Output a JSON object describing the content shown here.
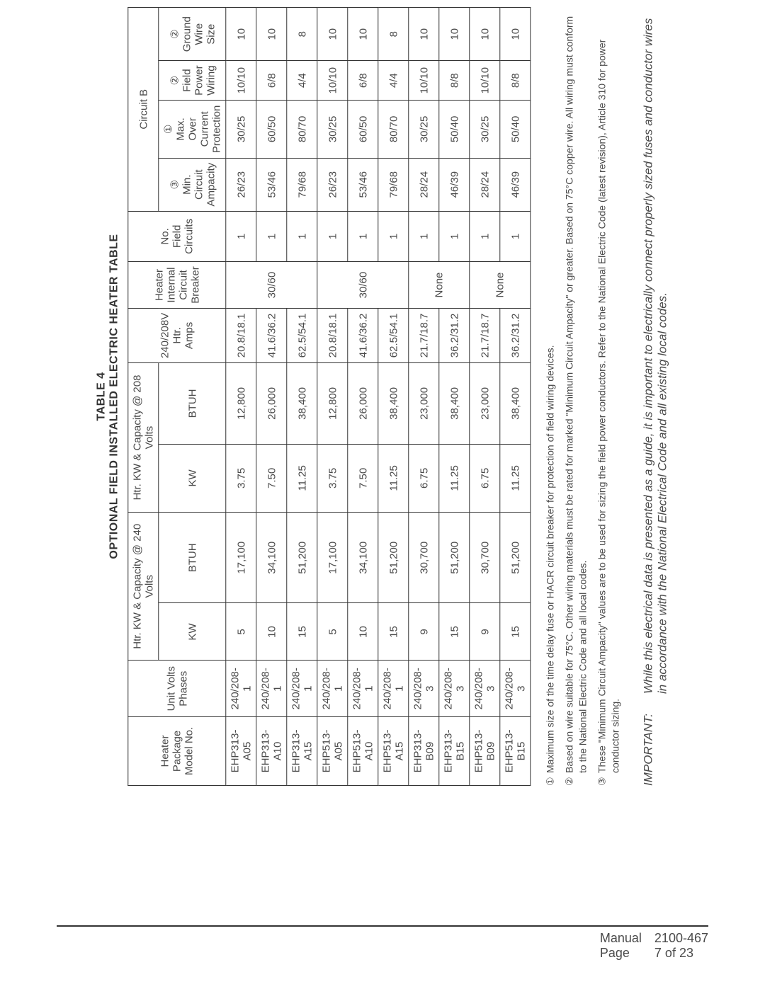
{
  "title": {
    "line1": "TABLE  4",
    "line2": "OPTIONAL FIELD INSTALLED ELECTRIC HEATER TABLE"
  },
  "symbols": {
    "c1": "①",
    "c2": "②",
    "c3": "③"
  },
  "headers": {
    "heater_pkg": "Heater Package Model No.",
    "unit_volts": "Unit Volts Phases",
    "cap240": "Htr. KW & Capacity @ 240 Volts",
    "cap208": "Htr. KW & Capacity @ 208 Volts",
    "kw": "KW",
    "btuh": "BTUH",
    "amps": "240/208V Htr. Amps",
    "hib": "Heater Internal Circuit Breaker",
    "nfc": "No. Field Circuits",
    "circuitB": "Circuit B",
    "min_amp": "Min. Circuit Ampacity",
    "max_over": "Max. Over Current Protection",
    "field_pw": "Field Power Wiring",
    "ground": "Ground Wire Size"
  },
  "rows": [
    {
      "model": "EHP313-A05",
      "uv": "240/208-1",
      "kw240": "5",
      "btuh240": "17,100",
      "kw208": "3.75",
      "btuh208": "12,800",
      "amps": "20.8/18.1",
      "hib": "30/60",
      "nfc": "1",
      "min": "26/23",
      "max": "30/25",
      "fpw": "10/10",
      "gnd": "10"
    },
    {
      "model": "EHP313-A10",
      "uv": "240/208-1",
      "kw240": "10",
      "btuh240": "34,100",
      "kw208": "7.50",
      "btuh208": "26,000",
      "amps": "41.6/36.2",
      "hib": "",
      "nfc": "1",
      "min": "53/46",
      "max": "60/50",
      "fpw": "6/8",
      "gnd": "10"
    },
    {
      "model": "EHP313-A15",
      "uv": "240/208-1",
      "kw240": "15",
      "btuh240": "51,200",
      "kw208": "11.25",
      "btuh208": "38,400",
      "amps": "62.5/54.1",
      "hib": "",
      "nfc": "1",
      "min": "79/68",
      "max": "80/70",
      "fpw": "4/4",
      "gnd": "8"
    },
    {
      "model": "EHP513-A05",
      "uv": "240/208-1",
      "kw240": "5",
      "btuh240": "17,100",
      "kw208": "3.75",
      "btuh208": "12,800",
      "amps": "20.8/18.1",
      "hib": "30/60",
      "nfc": "1",
      "min": "26/23",
      "max": "30/25",
      "fpw": "10/10",
      "gnd": "10"
    },
    {
      "model": "EHP513-A10",
      "uv": "240/208-1",
      "kw240": "10",
      "btuh240": "34,100",
      "kw208": "7.50",
      "btuh208": "26,000",
      "amps": "41.6/36.2",
      "hib": "",
      "nfc": "1",
      "min": "53/46",
      "max": "60/50",
      "fpw": "6/8",
      "gnd": "10"
    },
    {
      "model": "EHP513-A15",
      "uv": "240/208-1",
      "kw240": "15",
      "btuh240": "51,200",
      "kw208": "11.25",
      "btuh208": "38,400",
      "amps": "62.5/54.1",
      "hib": "",
      "nfc": "1",
      "min": "79/68",
      "max": "80/70",
      "fpw": "4/4",
      "gnd": "8"
    },
    {
      "model": "EHP313-B09",
      "uv": "240/208-3",
      "kw240": "9",
      "btuh240": "30,700",
      "kw208": "6.75",
      "btuh208": "23,000",
      "amps": "21.7/18.7",
      "hib": "None",
      "nfc": "1",
      "min": "28/24",
      "max": "30/25",
      "fpw": "10/10",
      "gnd": "10"
    },
    {
      "model": "EHP313-B15",
      "uv": "240/208-3",
      "kw240": "15",
      "btuh240": "51,200",
      "kw208": "11.25",
      "btuh208": "38,400",
      "amps": "36.2/31.2",
      "hib": "",
      "nfc": "1",
      "min": "46/39",
      "max": "50/40",
      "fpw": "8/8",
      "gnd": "10"
    },
    {
      "model": "EHP513-B09",
      "uv": "240/208-3",
      "kw240": "9",
      "btuh240": "30,700",
      "kw208": "6.75",
      "btuh208": "23,000",
      "amps": "21.7/18.7",
      "hib": "None",
      "nfc": "1",
      "min": "28/24",
      "max": "30/25",
      "fpw": "10/10",
      "gnd": "10"
    },
    {
      "model": "EHP513-B15",
      "uv": "240/208-3",
      "kw240": "15",
      "btuh240": "51,200",
      "kw208": "11.25",
      "btuh208": "38,400",
      "amps": "36.2/31.2",
      "hib": "",
      "nfc": "1",
      "min": "46/39",
      "max": "50/40",
      "fpw": "8/8",
      "gnd": "10"
    }
  ],
  "hib_groups": [
    {
      "start": 0,
      "span": 3,
      "text": "30/60"
    },
    {
      "start": 3,
      "span": 3,
      "text": "30/60"
    },
    {
      "start": 6,
      "span": 2,
      "text": "None"
    },
    {
      "start": 8,
      "span": 2,
      "text": "None"
    }
  ],
  "notes": {
    "n1": "Maximum size of the time delay fuse or HACR circuit breaker for protection of field wiring devices.",
    "n2": "Based on wire suitable for 75°C.  Other wiring materials must be rated for marked \"Minimum Circuit Ampacity\" or greater.  Based on 75°C copper wire.  All wiring must conform to the National Electric Code and all local codes.",
    "n3": "These \"Minimum Circuit Ampacity\" values are to be used for sizing the field power conductors.  Refer to the National Electric Code (latest revision), Article 310 for power conductor sizing."
  },
  "important": {
    "label": "IMPORTANT:",
    "text": "While this electrical data is presented as a guide, it is important to electrically connect properly sized fuses and conductor wires in accordance with the National Electrical Code and all existing local codes."
  },
  "footer": {
    "l1a": "Manual",
    "l1b": "2100-467",
    "l2a": "Page",
    "l2b": "7 of 23"
  },
  "style": {
    "border_color": "#333333",
    "text_color": "#4a4a4a",
    "bg": "#ffffff",
    "title_fontsize": 16,
    "cell_fontsize": 15,
    "note_fontsize": 14,
    "important_fontsize": 17,
    "footer_fontsize": 18
  }
}
